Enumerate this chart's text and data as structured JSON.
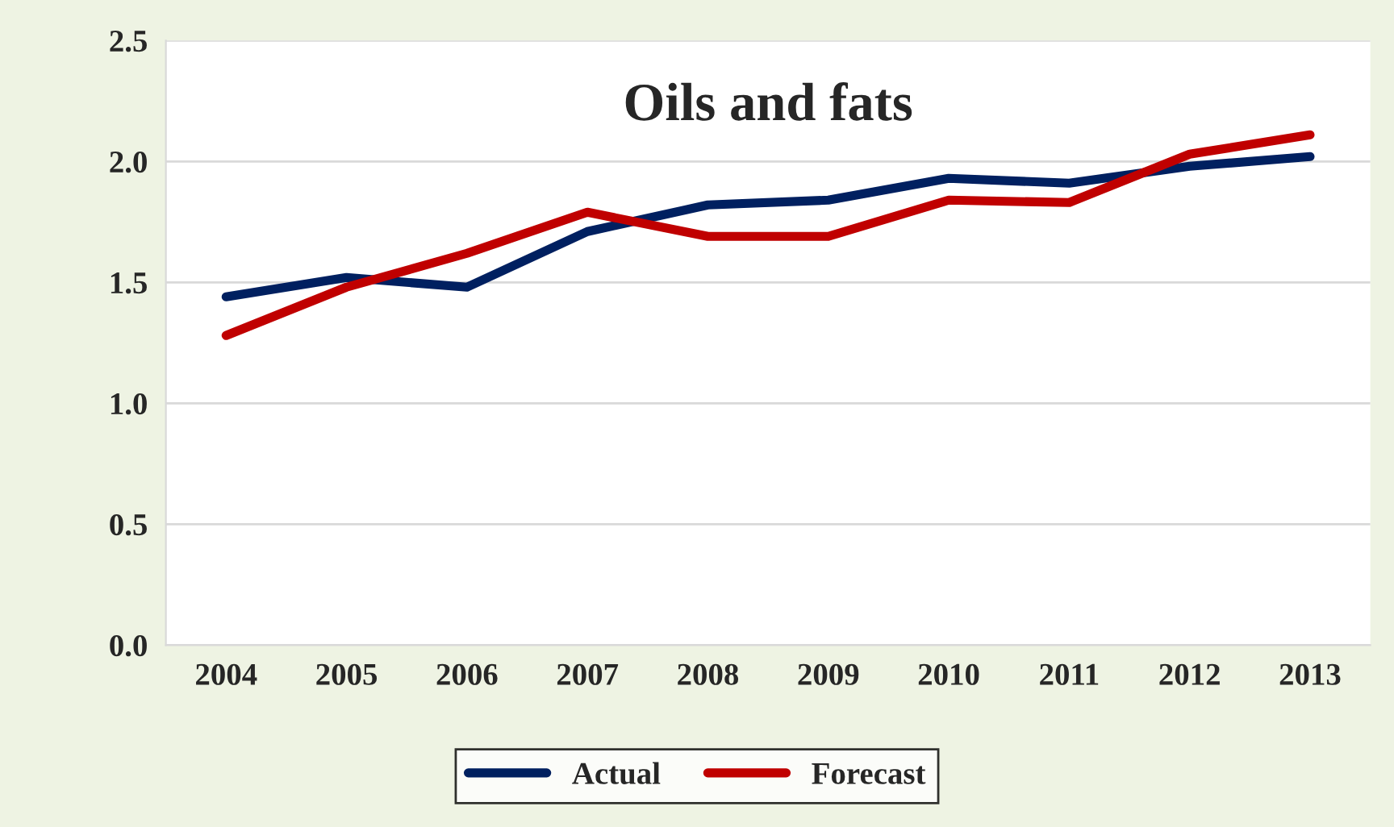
{
  "chart_data": {
    "type": "line",
    "title": "Oils and fats",
    "categories": [
      "2004",
      "2005",
      "2006",
      "2007",
      "2008",
      "2009",
      "2010",
      "2011",
      "2012",
      "2013"
    ],
    "series": [
      {
        "name": "Actual",
        "color": "#002060",
        "values": [
          1.44,
          1.52,
          1.48,
          1.71,
          1.82,
          1.84,
          1.93,
          1.91,
          1.98,
          2.02
        ]
      },
      {
        "name": "Forecast",
        "color": "#c00000",
        "values": [
          1.28,
          1.48,
          1.62,
          1.79,
          1.69,
          1.69,
          1.84,
          1.83,
          2.03,
          2.11
        ]
      }
    ],
    "ylim": [
      0,
      2.5
    ],
    "yticks": [
      {
        "value": 0,
        "label": "0.0"
      },
      {
        "value": 0.5,
        "label": "0.5"
      },
      {
        "value": 1,
        "label": "1.0"
      },
      {
        "value": 1.5,
        "label": "1.5"
      },
      {
        "value": 2,
        "label": "2.0"
      },
      {
        "value": 2.5,
        "label": "2.5"
      }
    ],
    "grid": "y",
    "legend": "bottom",
    "marker": "none",
    "line_style": "solid"
  }
}
